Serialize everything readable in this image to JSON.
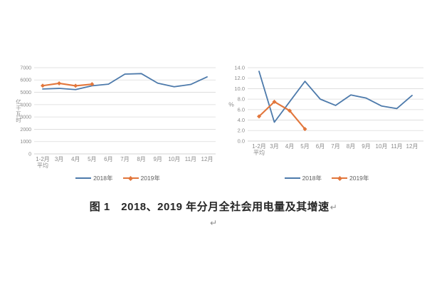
{
  "caption": {
    "text": "图 1　2018、2019 年分月全社会用电量及其增速",
    "return_mark": "↵",
    "trailing_return": "↵"
  },
  "colors": {
    "series_2018": "#4d7aab",
    "series_2019": "#e2763b",
    "gridline": "#d9d9d9",
    "axis_line": "#c4c4c4",
    "axis_text": "#8a8a8a",
    "legend_text": "#5e5e5e",
    "caption_text": "#262626"
  },
  "chart_data": [
    {
      "id": "monthly-electricity-consumption",
      "type": "line",
      "ylabel": "亿千瓦时",
      "categories": [
        "1-2月\n平均",
        "3月",
        "4月",
        "5月",
        "6月",
        "7月",
        "8月",
        "9月",
        "10月",
        "11月",
        "12月"
      ],
      "series": [
        {
          "name": "2018年",
          "color": "#4d7aab",
          "marker": false,
          "values": [
            5270,
            5320,
            5220,
            5530,
            5660,
            6480,
            6520,
            5740,
            5450,
            5640,
            6250
          ]
        },
        {
          "name": "2019年",
          "color": "#e2763b",
          "marker": true,
          "values": [
            5540,
            5730,
            5530,
            5660,
            null,
            null,
            null,
            null,
            null,
            null,
            null
          ]
        }
      ],
      "ylim": [
        0,
        7000
      ],
      "ytick_step": 1000,
      "ytick_format": "int",
      "grid": true,
      "legend_position": "bottom"
    },
    {
      "id": "monthly-electricity-growth-rate",
      "type": "line",
      "ylabel": "%",
      "categories": [
        "1-2月\n平均",
        "3月",
        "4月",
        "5月",
        "6月",
        "7月",
        "8月",
        "9月",
        "10月",
        "11月",
        "12月"
      ],
      "series": [
        {
          "name": "2018年",
          "color": "#4d7aab",
          "marker": false,
          "values": [
            13.3,
            3.6,
            7.5,
            11.4,
            8.0,
            6.8,
            8.8,
            8.2,
            6.7,
            6.2,
            8.7
          ]
        },
        {
          "name": "2019年",
          "color": "#e2763b",
          "marker": true,
          "values": [
            4.7,
            7.5,
            5.8,
            2.3,
            null,
            null,
            null,
            null,
            null,
            null,
            null
          ]
        }
      ],
      "ylim": [
        0,
        14
      ],
      "ytick_step": 2,
      "ytick_format": "1dp",
      "grid": true,
      "legend_position": "bottom"
    }
  ]
}
